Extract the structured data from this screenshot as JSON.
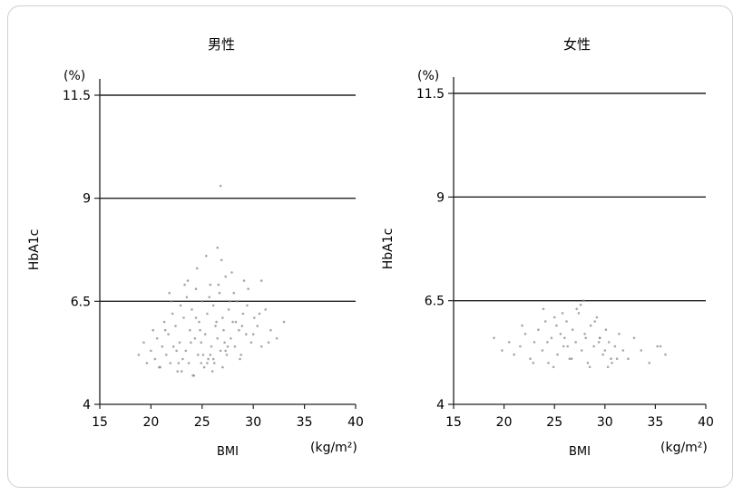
{
  "chart_data": [
    {
      "type": "scatter",
      "title": "男性",
      "xlabel": "BMI",
      "x_unit": "(kg/m²)",
      "ylabel": "HbA1c",
      "y_unit": "(%)",
      "xlim": [
        15,
        40
      ],
      "ylim": [
        4,
        11.5
      ],
      "x_ticks": [
        "15",
        "20",
        "25",
        "30",
        "35",
        "40"
      ],
      "y_ticks": [
        "4",
        "6.5",
        "9",
        "11.5"
      ],
      "reference_lines_y": [
        6.5,
        9,
        11.5
      ],
      "points_x": [
        18.8,
        19.3,
        19.6,
        20.0,
        20.2,
        20.4,
        20.6,
        20.9,
        21.1,
        21.3,
        21.5,
        21.7,
        21.9,
        22.1,
        22.2,
        22.4,
        22.6,
        22.8,
        22.9,
        23.1,
        23.2,
        23.4,
        23.5,
        23.7,
        23.8,
        24.0,
        24.1,
        24.3,
        24.4,
        24.6,
        24.7,
        24.9,
        25.0,
        25.2,
        25.3,
        25.5,
        25.6,
        25.8,
        25.9,
        26.1,
        26.2,
        26.4,
        26.5,
        26.7,
        26.8,
        27.0,
        27.1,
        27.3,
        27.4,
        27.6,
        27.8,
        28.0,
        28.2,
        28.4,
        28.6,
        28.8,
        29.0,
        29.3,
        29.5,
        29.8,
        30.1,
        30.4,
        30.8,
        31.2,
        31.7,
        32.3,
        20.8,
        21.4,
        22.0,
        22.7,
        23.3,
        23.9,
        24.5,
        25.1,
        25.7,
        26.3,
        26.9,
        27.5,
        28.1,
        28.7,
        29.4,
        30.0,
        22.5,
        23.6,
        24.8,
        25.4,
        26.0,
        26.6,
        27.2,
        27.9,
        24.2,
        25.8,
        26.5,
        27.0,
        28.3,
        21.8,
        23.0,
        24.9,
        26.1,
        27.7,
        29.1,
        30.6,
        31.5,
        24.4,
        25.5,
        27.3,
        28.9,
        33.0,
        30.8,
        26.8
      ],
      "points_y": [
        5.2,
        5.5,
        5.0,
        5.3,
        5.8,
        5.1,
        5.6,
        4.9,
        5.4,
        6.0,
        5.2,
        5.7,
        5.0,
        6.2,
        5.4,
        5.9,
        4.8,
        5.5,
        6.4,
        5.1,
        6.1,
        5.3,
        6.6,
        5.0,
        5.8,
        6.3,
        4.7,
        5.6,
        6.8,
        5.2,
        6.0,
        5.5,
        6.5,
        4.9,
        5.7,
        6.2,
        5.1,
        6.9,
        5.4,
        6.4,
        5.0,
        6.0,
        5.6,
        6.7,
        5.3,
        6.1,
        5.8,
        7.1,
        5.2,
        6.3,
        5.6,
        6.0,
        5.4,
        6.5,
        5.8,
        5.2,
        6.2,
        5.7,
        6.8,
        5.5,
        6.1,
        5.9,
        5.4,
        6.3,
        5.8,
        5.6,
        4.9,
        5.8,
        6.5,
        5.0,
        6.9,
        5.5,
        7.3,
        5.2,
        6.6,
        5.9,
        7.5,
        5.4,
        6.7,
        5.1,
        6.4,
        5.7,
        5.3,
        7.0,
        5.8,
        7.6,
        4.8,
        6.9,
        5.5,
        7.2,
        4.7,
        5.2,
        7.8,
        4.9,
        6.0,
        6.7,
        4.8,
        5.0,
        5.1,
        6.5,
        7.0,
        6.2,
        5.5,
        6.1,
        5.0,
        5.3,
        5.9,
        6.0,
        7.0,
        9.3
      ],
      "note": "sampled"
    },
    {
      "type": "scatter",
      "title": "女性",
      "xlabel": "BMI",
      "x_unit": "(kg/m²)",
      "ylabel": "HbA1c",
      "y_unit": "(%)",
      "xlim": [
        15,
        40
      ],
      "ylim": [
        4,
        11.5
      ],
      "x_ticks": [
        "15",
        "20",
        "25",
        "30",
        "35",
        "40"
      ],
      "y_ticks": [
        "4",
        "6.5",
        "9",
        "11.5"
      ],
      "reference_lines_y": [
        6.5,
        9,
        11.5
      ],
      "points_x": [
        19.0,
        19.8,
        20.5,
        21.0,
        21.6,
        22.1,
        22.6,
        23.0,
        23.4,
        23.8,
        24.1,
        24.4,
        24.7,
        25.0,
        25.3,
        25.6,
        25.9,
        26.2,
        26.5,
        26.8,
        27.1,
        27.4,
        27.7,
        28.0,
        28.3,
        28.6,
        28.9,
        29.2,
        29.5,
        29.8,
        30.1,
        30.4,
        30.7,
        31.0,
        31.4,
        31.8,
        32.3,
        32.9,
        33.6,
        34.4,
        35.2,
        36.0,
        21.8,
        22.9,
        23.9,
        24.9,
        25.8,
        26.7,
        27.6,
        28.5,
        29.4,
        30.3,
        31.2,
        24.3,
        25.2,
        26.3,
        27.2,
        28.1,
        29.0,
        30.0,
        26.0,
        27.9,
        30.6,
        35.5,
        29.5
      ],
      "points_y": [
        5.6,
        5.3,
        5.5,
        5.2,
        5.4,
        5.7,
        5.1,
        5.5,
        5.8,
        5.3,
        6.0,
        5.0,
        5.6,
        6.1,
        5.2,
        5.7,
        5.4,
        6.0,
        5.1,
        5.8,
        5.5,
        6.2,
        5.3,
        5.7,
        5.0,
        5.9,
        5.4,
        6.1,
        5.6,
        5.2,
        5.8,
        5.5,
        5.0,
        5.4,
        5.7,
        5.3,
        5.1,
        5.6,
        5.3,
        5.0,
        5.4,
        5.2,
        5.9,
        5.0,
        6.3,
        4.9,
        6.2,
        5.1,
        6.4,
        4.9,
        5.5,
        4.9,
        5.1,
        5.5,
        5.9,
        5.4,
        6.3,
        5.6,
        6.0,
        5.3,
        5.6,
        6.5,
        5.1,
        5.4,
        5.6
      ],
      "note": "sampled"
    }
  ]
}
